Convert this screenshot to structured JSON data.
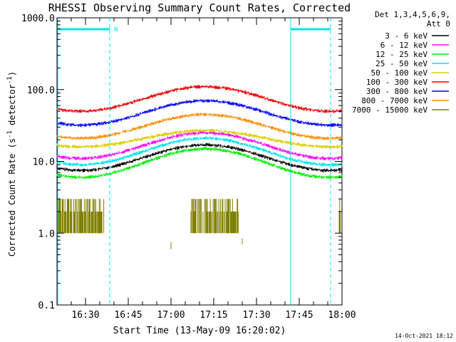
{
  "chart_data": {
    "type": "line",
    "title": "RHESSI Observing Summary Count Rates, Corrected",
    "xlabel": "Start Time (13-May-09 16:20:02)",
    "ylabel_main": "Corrected Count Rate (s",
    "ylabel_sup1": "-1",
    "ylabel_mid": " detector",
    "ylabel_sup2": "-1",
    "ylabel_end": ")",
    "y_scale": "log",
    "ylim": [
      0.1,
      1000
    ],
    "xlim_minutes": [
      0,
      100
    ],
    "x_tick_labels": [
      {
        "label": "16:30",
        "minute": 10
      },
      {
        "label": "16:45",
        "minute": 25
      },
      {
        "label": "17:00",
        "minute": 40
      },
      {
        "label": "17:15",
        "minute": 55
      },
      {
        "label": "17:30",
        "minute": 70
      },
      {
        "label": "17:45",
        "minute": 85
      },
      {
        "label": "18:00",
        "minute": 100
      }
    ],
    "y_tick_labels": [
      {
        "label": "1000.0",
        "value": 1000
      },
      {
        "label": "100.0",
        "value": 100
      },
      {
        "label": "10.0",
        "value": 10
      },
      {
        "label": "1.0",
        "value": 1
      },
      {
        "label": "0.1",
        "value": 0.1
      }
    ],
    "legend_header_1": "Det 1,3,4,5,6,9,",
    "legend_header_2": "Att 0",
    "legend_placement": "right",
    "night_flag_label": "N",
    "night_boundaries_minutes": [
      18.5,
      82,
      100
    ],
    "timestamp": "14-Oct-2021 18:12",
    "series": [
      {
        "name": "3 - 6 keV",
        "color": "#000000",
        "min": 7.5,
        "max": 17
      },
      {
        "name": "6 - 12 keV",
        "color": "#ff00ff",
        "min": 11,
        "max": 25
      },
      {
        "name": "12 - 25 keV",
        "color": "#00ee00",
        "min": 6,
        "max": 15
      },
      {
        "name": "25 - 50 keV",
        "color": "#00e5ee",
        "min": 9,
        "max": 21
      },
      {
        "name": "50 - 100 keV",
        "color": "#ddcc00",
        "min": 16,
        "max": 27
      },
      {
        "name": "100 - 300 keV",
        "color": "#ee0000",
        "min": 50,
        "max": 110
      },
      {
        "name": "300 - 800 keV",
        "color": "#0000ff",
        "min": 32,
        "max": 70
      },
      {
        "name": "800 - 7000 keV",
        "color": "#ff8c00",
        "min": 21,
        "max": 45
      },
      {
        "name": "7000 - 15000 keV",
        "color": "#808000",
        "min": 1,
        "max": 3
      }
    ]
  }
}
